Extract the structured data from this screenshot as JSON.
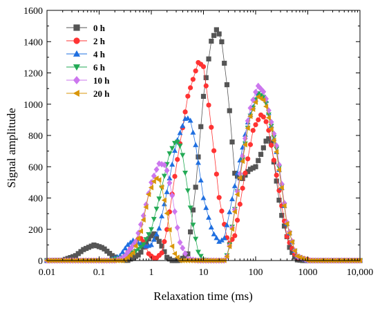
{
  "chart_data": {
    "type": "line",
    "xlabel": "Relaxation time (ms)",
    "ylabel": "Signal amplitude",
    "xscale": "log",
    "xlim": [
      0.01,
      10000
    ],
    "ylim": [
      0,
      1600
    ],
    "x_ticks": [
      0.01,
      0.1,
      1,
      10,
      100,
      1000,
      10000
    ],
    "x_tick_labels": [
      "0.01",
      "0.1",
      "1",
      "10",
      "100",
      "1000",
      "10,000"
    ],
    "y_ticks": [
      0,
      200,
      400,
      600,
      800,
      1000,
      1200,
      1400,
      1600
    ],
    "y_tick_labels": [
      "0",
      "200",
      "400",
      "600",
      "800",
      "1000",
      "1200",
      "1400",
      "1600"
    ],
    "legend_position": "top-left",
    "grid": false,
    "series": [
      {
        "name": "0 h",
        "color": "#555555",
        "marker": "square",
        "points": [
          [
            0.01,
            0
          ],
          [
            0.02,
            2
          ],
          [
            0.035,
            30
          ],
          [
            0.05,
            70
          ],
          [
            0.08,
            100
          ],
          [
            0.12,
            80
          ],
          [
            0.18,
            30
          ],
          [
            0.25,
            5
          ],
          [
            0.35,
            0
          ],
          [
            0.6,
            40
          ],
          [
            0.8,
            120
          ],
          [
            1.1,
            175
          ],
          [
            1.5,
            110
          ],
          [
            2,
            20
          ],
          [
            2.5,
            0
          ],
          [
            3.5,
            0
          ],
          [
            5,
            40
          ],
          [
            7,
            450
          ],
          [
            10,
            1050
          ],
          [
            14,
            1400
          ],
          [
            18,
            1480
          ],
          [
            22,
            1420
          ],
          [
            30,
            1050
          ],
          [
            40,
            550
          ],
          [
            55,
            520
          ],
          [
            75,
            580
          ],
          [
            100,
            600
          ],
          [
            130,
            690
          ],
          [
            170,
            790
          ],
          [
            200,
            750
          ],
          [
            300,
            320
          ],
          [
            450,
            80
          ],
          [
            600,
            5
          ],
          [
            800,
            0
          ],
          [
            10000,
            0
          ]
        ]
      },
      {
        "name": "2 h",
        "color": "#ff3333",
        "marker": "circle",
        "points": [
          [
            0.01,
            0
          ],
          [
            0.2,
            0
          ],
          [
            0.3,
            20
          ],
          [
            0.45,
            100
          ],
          [
            0.6,
            150
          ],
          [
            0.75,
            110
          ],
          [
            0.9,
            40
          ],
          [
            1.2,
            10
          ],
          [
            1.6,
            50
          ],
          [
            2,
            200
          ],
          [
            3,
            600
          ],
          [
            5,
            1050
          ],
          [
            8,
            1270
          ],
          [
            10,
            1240
          ],
          [
            13,
            960
          ],
          [
            20,
            400
          ],
          [
            30,
            100
          ],
          [
            40,
            160
          ],
          [
            60,
            520
          ],
          [
            90,
            840
          ],
          [
            130,
            940
          ],
          [
            170,
            870
          ],
          [
            250,
            550
          ],
          [
            400,
            150
          ],
          [
            600,
            20
          ],
          [
            900,
            10
          ],
          [
            1200,
            0
          ],
          [
            10000,
            0
          ]
        ]
      },
      {
        "name": "4 h",
        "color": "#1f6fe0",
        "marker": "triangle-up",
        "points": [
          [
            0.01,
            0
          ],
          [
            0.15,
            0
          ],
          [
            0.25,
            30
          ],
          [
            0.35,
            100
          ],
          [
            0.45,
            130
          ],
          [
            0.6,
            110
          ],
          [
            0.8,
            90
          ],
          [
            1,
            100
          ],
          [
            1.4,
            200
          ],
          [
            2,
            440
          ],
          [
            3,
            750
          ],
          [
            4.5,
            910
          ],
          [
            5.5,
            910
          ],
          [
            7,
            750
          ],
          [
            10,
            400
          ],
          [
            15,
            180
          ],
          [
            20,
            120
          ],
          [
            25,
            140
          ],
          [
            40,
            480
          ],
          [
            70,
            880
          ],
          [
            110,
            1070
          ],
          [
            160,
            1020
          ],
          [
            250,
            700
          ],
          [
            400,
            230
          ],
          [
            600,
            30
          ],
          [
            1000,
            0
          ],
          [
            10000,
            0
          ]
        ]
      },
      {
        "name": "6 h",
        "color": "#22aa55",
        "marker": "triangle-down",
        "points": [
          [
            0.01,
            0
          ],
          [
            0.15,
            0
          ],
          [
            0.3,
            20
          ],
          [
            0.5,
            60
          ],
          [
            0.7,
            100
          ],
          [
            1,
            200
          ],
          [
            1.5,
            430
          ],
          [
            2.2,
            680
          ],
          [
            3,
            770
          ],
          [
            3.8,
            720
          ],
          [
            5,
            450
          ],
          [
            6.5,
            200
          ],
          [
            8,
            50
          ],
          [
            10,
            5
          ],
          [
            15,
            0
          ],
          [
            25,
            0
          ],
          [
            30,
            50
          ],
          [
            45,
            450
          ],
          [
            75,
            900
          ],
          [
            110,
            1070
          ],
          [
            150,
            1040
          ],
          [
            250,
            720
          ],
          [
            400,
            230
          ],
          [
            600,
            30
          ],
          [
            1000,
            0
          ],
          [
            10000,
            0
          ]
        ]
      },
      {
        "name": "10 h",
        "color": "#cc77ee",
        "marker": "diamond",
        "points": [
          [
            0.01,
            0
          ],
          [
            0.2,
            0
          ],
          [
            0.3,
            20
          ],
          [
            0.5,
            120
          ],
          [
            0.7,
            280
          ],
          [
            1,
            500
          ],
          [
            1.4,
            620
          ],
          [
            1.9,
            610
          ],
          [
            2.5,
            420
          ],
          [
            3.5,
            120
          ],
          [
            5,
            10
          ],
          [
            8,
            0
          ],
          [
            25,
            0
          ],
          [
            30,
            40
          ],
          [
            45,
            450
          ],
          [
            75,
            950
          ],
          [
            110,
            1120
          ],
          [
            150,
            1070
          ],
          [
            250,
            740
          ],
          [
            400,
            240
          ],
          [
            600,
            30
          ],
          [
            1000,
            0
          ],
          [
            10000,
            0
          ]
        ]
      },
      {
        "name": "20 h",
        "color": "#d9960a",
        "marker": "triangle-left",
        "points": [
          [
            0.01,
            0
          ],
          [
            0.3,
            0
          ],
          [
            0.45,
            50
          ],
          [
            0.65,
            200
          ],
          [
            0.9,
            430
          ],
          [
            1.2,
            530
          ],
          [
            1.5,
            510
          ],
          [
            2,
            300
          ],
          [
            2.6,
            60
          ],
          [
            3.5,
            0
          ],
          [
            25,
            0
          ],
          [
            30,
            40
          ],
          [
            45,
            430
          ],
          [
            75,
            900
          ],
          [
            110,
            1050
          ],
          [
            150,
            1020
          ],
          [
            250,
            700
          ],
          [
            400,
            230
          ],
          [
            600,
            30
          ],
          [
            1000,
            0
          ],
          [
            10000,
            0
          ]
        ]
      }
    ]
  }
}
